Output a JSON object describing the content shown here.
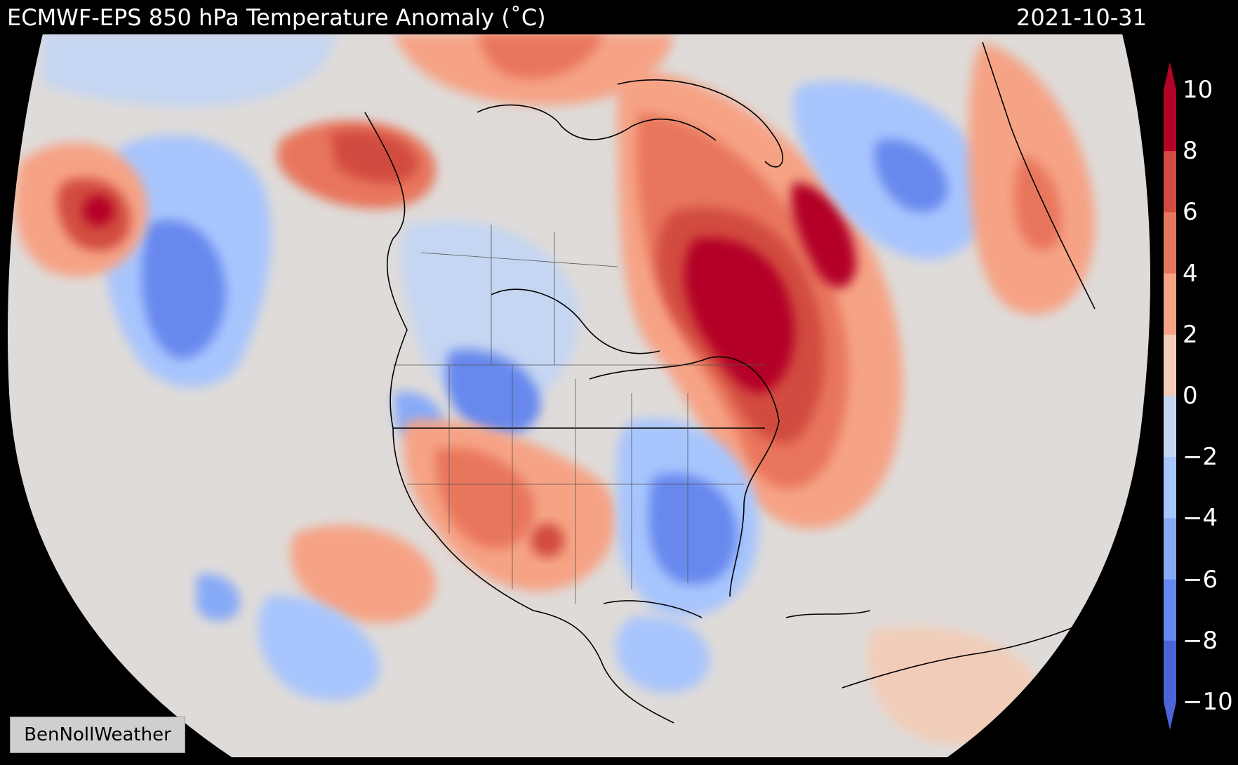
{
  "header": {
    "title": "ECMWF-EPS 850 hPa Temperature Anomaly (˚C)",
    "date": "2021-10-31"
  },
  "credit": "BenNollWeather",
  "colorbar": {
    "ticks": [
      "10",
      "8",
      "6",
      "4",
      "2",
      "0",
      "−2",
      "−4",
      "−6",
      "−8",
      "−10"
    ],
    "colors": [
      "#b40426",
      "#d24b40",
      "#e8765c",
      "#f6a385",
      "#f1cdb9",
      "#dfdbd9",
      "#c5d6f2",
      "#a7c5fd",
      "#87aaf7",
      "#6788ee",
      "#4b65d6"
    ]
  },
  "map": {
    "projection": "orthographic",
    "ocean_color": "#dfdbd9"
  }
}
